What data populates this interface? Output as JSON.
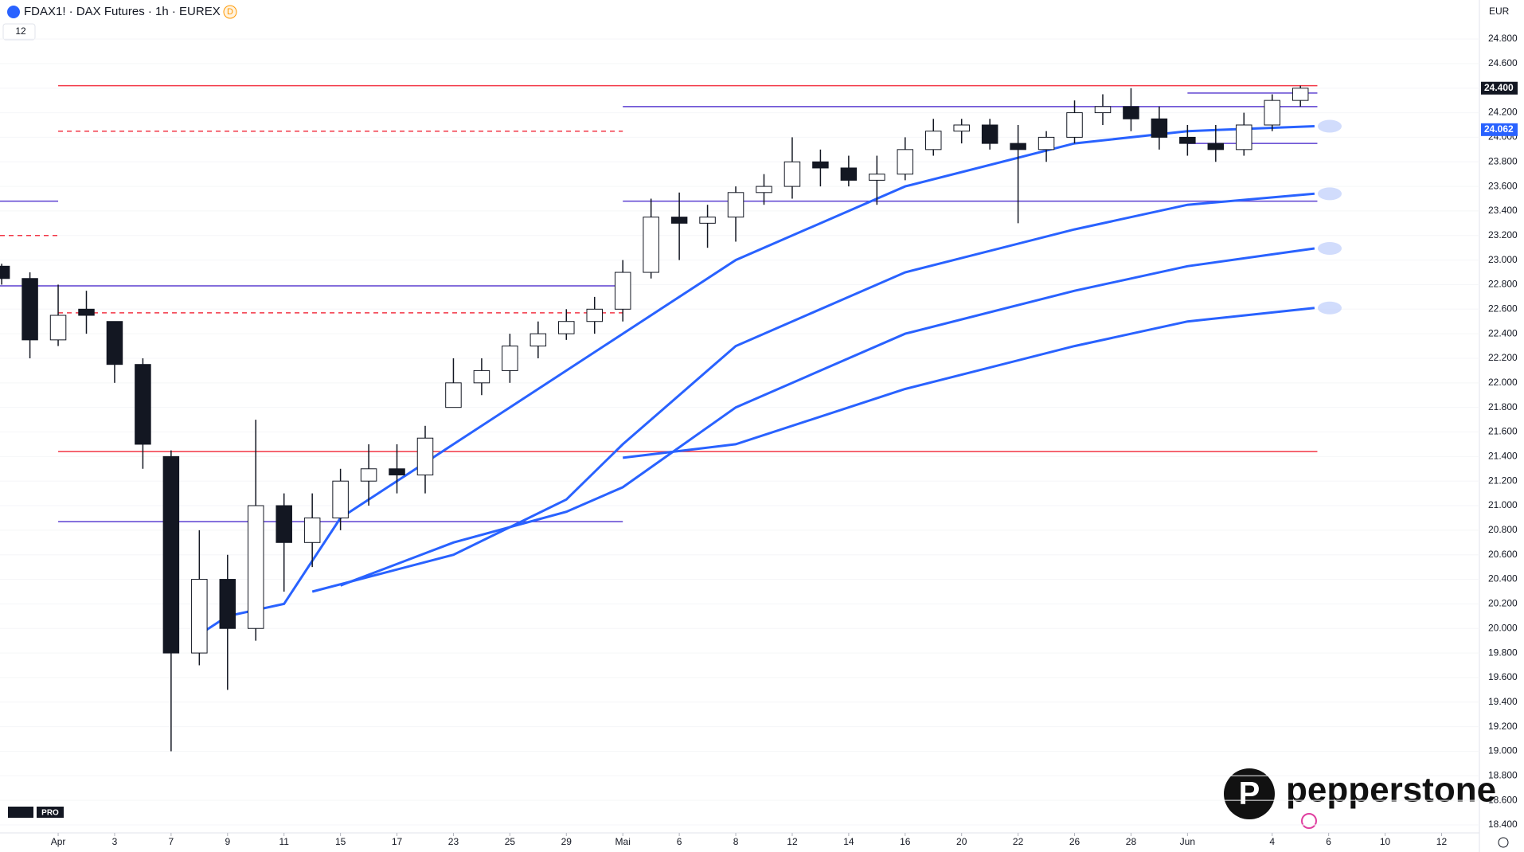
{
  "header": {
    "symbol": "FDAX1! · DAX Futures · 1h · EUREX",
    "badge": "D",
    "indicator_count": "12"
  },
  "branding": {
    "platform": "PRO",
    "logo": "pepperstone"
  },
  "chart_data": {
    "type": "candlestick",
    "currency": "EUR",
    "xlim": [
      -2.06,
      50.34
    ],
    "ylim": [
      18335,
      25118
    ],
    "xticks": [
      {
        "value": 0,
        "label": "Apr"
      },
      {
        "value": 2,
        "label": "3"
      },
      {
        "value": 4,
        "label": "7"
      },
      {
        "value": 6,
        "label": "9"
      },
      {
        "value": 8,
        "label": "11"
      },
      {
        "value": 10,
        "label": "15"
      },
      {
        "value": 12,
        "label": "17"
      },
      {
        "value": 14,
        "label": "23"
      },
      {
        "value": 16,
        "label": "25"
      },
      {
        "value": 18,
        "label": "29"
      },
      {
        "value": 20,
        "label": "Mai"
      },
      {
        "value": 22,
        "label": "6"
      },
      {
        "value": 24,
        "label": "8"
      },
      {
        "value": 26,
        "label": "12"
      },
      {
        "value": 28,
        "label": "14"
      },
      {
        "value": 30,
        "label": "16"
      },
      {
        "value": 32,
        "label": "20"
      },
      {
        "value": 34,
        "label": "22"
      },
      {
        "value": 36,
        "label": "26"
      },
      {
        "value": 38,
        "label": "28"
      },
      {
        "value": 40,
        "label": "Jun"
      },
      {
        "value": 43,
        "label": "4"
      },
      {
        "value": 45,
        "label": "6"
      },
      {
        "value": 47,
        "label": "10"
      },
      {
        "value": 49,
        "label": "12"
      }
    ],
    "yticks": [
      {
        "value": 18400,
        "label": "18.400"
      },
      {
        "value": 18600,
        "label": "18.600"
      },
      {
        "value": 18800,
        "label": "18.800"
      },
      {
        "value": 19000,
        "label": "19.000"
      },
      {
        "value": 19200,
        "label": "19.200"
      },
      {
        "value": 19400,
        "label": "19.400"
      },
      {
        "value": 19600,
        "label": "19.600"
      },
      {
        "value": 19800,
        "label": "19.800"
      },
      {
        "value": 20000,
        "label": "20.000"
      },
      {
        "value": 20200,
        "label": "20.200"
      },
      {
        "value": 20400,
        "label": "20.400"
      },
      {
        "value": 20600,
        "label": "20.600"
      },
      {
        "value": 20800,
        "label": "20.800"
      },
      {
        "value": 21000,
        "label": "21.000"
      },
      {
        "value": 21200,
        "label": "21.200"
      },
      {
        "value": 21400,
        "label": "21.400"
      },
      {
        "value": 21600,
        "label": "21.600"
      },
      {
        "value": 21800,
        "label": "21.800"
      },
      {
        "value": 22000,
        "label": "22.000"
      },
      {
        "value": 22200,
        "label": "22.200"
      },
      {
        "value": 22400,
        "label": "22.400"
      },
      {
        "value": 22600,
        "label": "22.600"
      },
      {
        "value": 22800,
        "label": "22.800"
      },
      {
        "value": 23000,
        "label": "23.000"
      },
      {
        "value": 23200,
        "label": "23.200"
      },
      {
        "value": 23400,
        "label": "23.400"
      },
      {
        "value": 23600,
        "label": "23.600"
      },
      {
        "value": 23800,
        "label": "23.800"
      },
      {
        "value": 24000,
        "label": "24.000"
      },
      {
        "value": 24200,
        "label": "24.200"
      },
      {
        "value": 24400,
        "label": "24.400"
      },
      {
        "value": 24600,
        "label": "24.600"
      },
      {
        "value": 24800,
        "label": "24.800"
      }
    ],
    "price_labels": [
      {
        "value": 24400,
        "label": "24.400",
        "color": "#131722"
      },
      {
        "value": 24062,
        "label": "24.062",
        "color": "#2962ff"
      }
    ],
    "x": [
      -2,
      -1,
      0,
      1,
      2,
      3,
      4,
      5,
      6,
      7,
      8,
      9,
      10,
      11,
      12,
      13,
      14,
      15,
      16,
      17,
      18,
      19,
      20,
      21,
      22,
      23,
      24,
      25,
      26,
      27,
      28,
      29,
      30,
      31,
      32,
      33,
      34,
      35,
      36,
      37,
      38,
      39,
      40,
      41,
      42,
      43,
      44
    ],
    "open": [
      22950,
      22850,
      22350,
      22600,
      22500,
      22150,
      21400,
      19800,
      20400,
      20000,
      21000,
      20700,
      20900,
      21200,
      21300,
      21250,
      21800,
      22000,
      22100,
      22300,
      22400,
      22500,
      22600,
      22900,
      23350,
      23300,
      23350,
      23550,
      23600,
      23800,
      23750,
      23650,
      23700,
      23900,
      24050,
      24100,
      23950,
      23900,
      24000,
      24200,
      24250,
      24150,
      24000,
      23950,
      23900,
      24100,
      24300
    ],
    "high": [
      22970,
      22900,
      22800,
      22750,
      22500,
      22200,
      21450,
      20800,
      20600,
      21700,
      21100,
      21100,
      21300,
      21500,
      21500,
      21650,
      22200,
      22200,
      22400,
      22500,
      22600,
      22700,
      23000,
      23500,
      23550,
      23450,
      23600,
      23700,
      24000,
      23900,
      23850,
      23850,
      24000,
      24150,
      24150,
      24150,
      24100,
      24050,
      24300,
      24350,
      24400,
      24250,
      24100,
      24100,
      24200,
      24350,
      24420
    ],
    "low": [
      22800,
      22200,
      22300,
      22400,
      22000,
      21300,
      19000,
      19700,
      19500,
      19900,
      20300,
      20500,
      20800,
      21000,
      21100,
      21100,
      21800,
      21900,
      22000,
      22200,
      22350,
      22400,
      22500,
      22850,
      23000,
      23100,
      23150,
      23450,
      23500,
      23600,
      23600,
      23450,
      23650,
      23850,
      23950,
      23900,
      23300,
      23800,
      23950,
      24100,
      24050,
      23900,
      23850,
      23800,
      23850,
      24050,
      24250
    ],
    "close": [
      22850,
      22350,
      22550,
      22550,
      22150,
      21500,
      19800,
      20400,
      20000,
      21000,
      20700,
      20900,
      21200,
      21300,
      21250,
      21550,
      22000,
      22100,
      22300,
      22400,
      22500,
      22600,
      22900,
      23350,
      23300,
      23350,
      23550,
      23600,
      23800,
      23750,
      23650,
      23700,
      23900,
      24050,
      24100,
      23950,
      23900,
      24000,
      24200,
      24250,
      24150,
      24000,
      23950,
      23900,
      24100,
      24300,
      24400
    ],
    "series": [
      {
        "color": "#2962ff",
        "x": [
          5,
          6,
          8,
          10,
          14,
          18,
          20,
          24,
          30,
          36,
          40,
          44.5
        ],
        "values": [
          19950,
          20100,
          20200,
          20900,
          21500,
          22100,
          22400,
          23000,
          23600,
          23950,
          24050,
          24090
        ]
      },
      {
        "color": "#2962ff",
        "x": [
          9,
          14,
          18,
          20,
          24,
          30,
          36,
          40,
          44.5
        ],
        "values": [
          20300,
          20600,
          21050,
          21500,
          22300,
          22900,
          23250,
          23450,
          23540
        ]
      },
      {
        "color": "#2962ff",
        "x": [
          10,
          14,
          18,
          20,
          24,
          30,
          36,
          40,
          44.5
        ],
        "values": [
          20350,
          20700,
          20950,
          21150,
          21800,
          22400,
          22750,
          22950,
          23095
        ]
      },
      {
        "color": "#2962ff",
        "x": [
          20,
          24,
          30,
          36,
          40,
          44.5
        ],
        "values": [
          21390,
          21500,
          21950,
          22300,
          22500,
          22610
        ]
      }
    ],
    "levels": [
      {
        "value": 24420,
        "x": [
          0,
          44.6
        ],
        "color": "#f23645",
        "dashed": false
      },
      {
        "value": 24050,
        "x": [
          0,
          20
        ],
        "color": "#f23645",
        "dashed": true
      },
      {
        "value": 22570,
        "x": [
          0,
          20
        ],
        "color": "#f23645",
        "dashed": true
      },
      {
        "value": 23200,
        "x": [
          -2.06,
          0
        ],
        "color": "#f23645",
        "dashed": true
      },
      {
        "value": 21440,
        "x": [
          0,
          44.6
        ],
        "color": "#f23645",
        "dashed": false
      },
      {
        "value": 23480,
        "x": [
          -2.06,
          0
        ],
        "color": "#5b3fd0",
        "dashed": false
      },
      {
        "value": 23480,
        "x": [
          20,
          44.6
        ],
        "color": "#5b3fd0",
        "dashed": false
      },
      {
        "value": 22790,
        "x": [
          -2.06,
          20
        ],
        "color": "#5b3fd0",
        "dashed": false
      },
      {
        "value": 20870,
        "x": [
          0,
          20
        ],
        "color": "#5b3fd0",
        "dashed": false
      },
      {
        "value": 24250,
        "x": [
          20,
          44.6
        ],
        "color": "#5b3fd0",
        "dashed": false
      },
      {
        "value": 24360,
        "x": [
          40,
          44.6
        ],
        "color": "#5b3fd0",
        "dashed": false
      },
      {
        "value": 23950,
        "x": [
          40,
          44.6
        ],
        "color": "#5b3fd0",
        "dashed": false
      }
    ]
  }
}
